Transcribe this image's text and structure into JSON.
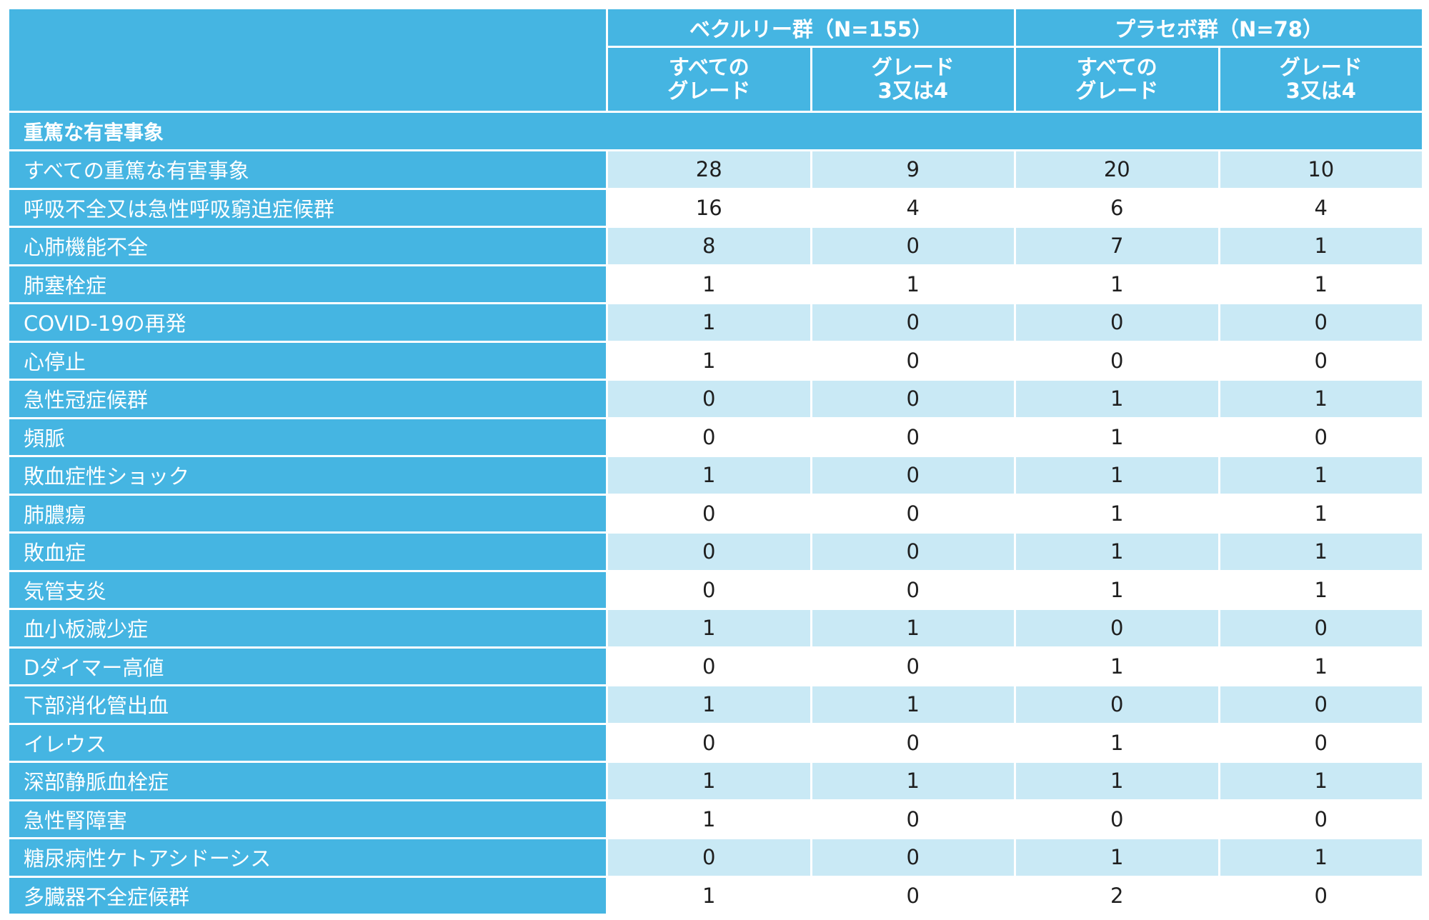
{
  "groups": [
    {
      "label": "ベクルリー群（N=155）"
    },
    {
      "label": "プラセボ群（N=78）"
    }
  ],
  "sub_headers": [
    {
      "line1": "すべての",
      "line2": "グレード"
    },
    {
      "line1": "グレード",
      "line2": "3又は4"
    },
    {
      "line1": "すべての",
      "line2": "グレード"
    },
    {
      "line1": "グレード",
      "line2": "3又は4"
    }
  ],
  "section_title": "重篤な有害事象",
  "rows": [
    {
      "label": "すべての重篤な有害事象",
      "values": [
        "28",
        "9",
        "20",
        "10"
      ]
    },
    {
      "label": "呼吸不全又は急性呼吸窮迫症候群",
      "values": [
        "16",
        "4",
        "6",
        "4"
      ]
    },
    {
      "label": "心肺機能不全",
      "values": [
        "8",
        "0",
        "7",
        "1"
      ]
    },
    {
      "label": "肺塞栓症",
      "values": [
        "1",
        "1",
        "1",
        "1"
      ]
    },
    {
      "label": "COVID-19の再発",
      "values": [
        "1",
        "0",
        "0",
        "0"
      ]
    },
    {
      "label": "心停止",
      "values": [
        "1",
        "0",
        "0",
        "0"
      ]
    },
    {
      "label": "急性冠症候群",
      "values": [
        "0",
        "0",
        "1",
        "1"
      ]
    },
    {
      "label": "頻脈",
      "values": [
        "0",
        "0",
        "1",
        "0"
      ]
    },
    {
      "label": "敗血症性ショック",
      "values": [
        "1",
        "0",
        "1",
        "1"
      ]
    },
    {
      "label": "肺膿瘍",
      "values": [
        "0",
        "0",
        "1",
        "1"
      ]
    },
    {
      "label": "敗血症",
      "values": [
        "0",
        "0",
        "1",
        "1"
      ]
    },
    {
      "label": "気管支炎",
      "values": [
        "0",
        "0",
        "1",
        "1"
      ]
    },
    {
      "label": "血小板減少症",
      "values": [
        "1",
        "1",
        "0",
        "0"
      ]
    },
    {
      "label": "Dダイマー高値",
      "values": [
        "0",
        "0",
        "1",
        "1"
      ]
    },
    {
      "label": "下部消化管出血",
      "values": [
        "1",
        "1",
        "0",
        "0"
      ]
    },
    {
      "label": "イレウス",
      "values": [
        "0",
        "0",
        "1",
        "0"
      ]
    },
    {
      "label": "深部静脈血栓症",
      "values": [
        "1",
        "1",
        "1",
        "1"
      ]
    },
    {
      "label": "急性腎障害",
      "values": [
        "1",
        "0",
        "0",
        "0"
      ]
    },
    {
      "label": "糖尿病性ケトアシドーシス",
      "values": [
        "0",
        "0",
        "1",
        "1"
      ]
    },
    {
      "label": "多臓器不全症候群",
      "values": [
        "1",
        "0",
        "2",
        "0"
      ]
    }
  ],
  "colors": {
    "header_blue": "#45b5e2",
    "row_shade": "#c9e9f5",
    "row_plain": "#ffffff"
  }
}
